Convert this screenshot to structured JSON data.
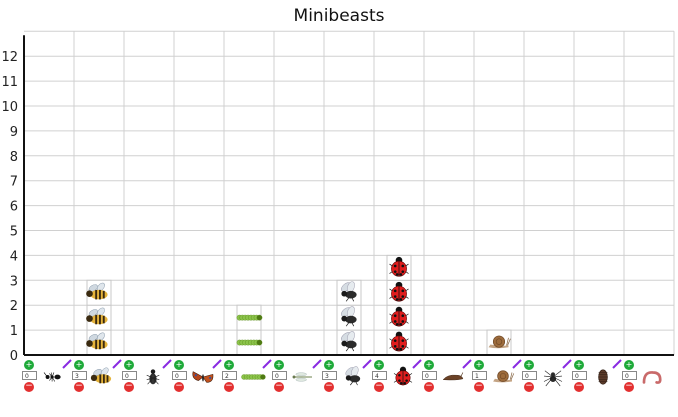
{
  "title": "Minibeasts",
  "chart_data": {
    "type": "bar",
    "title": "Minibeasts",
    "ylim": [
      0,
      13
    ],
    "yticks": [
      0,
      1,
      2,
      3,
      4,
      5,
      6,
      7,
      8,
      9,
      10,
      11,
      12
    ],
    "categories": [
      {
        "name": "ant",
        "icon": "ant-icon",
        "value": 0
      },
      {
        "name": "bee",
        "icon": "bee-icon",
        "value": 3
      },
      {
        "name": "beetle",
        "icon": "beetle-icon",
        "value": 0
      },
      {
        "name": "butterfly",
        "icon": "butterfly-icon",
        "value": 0
      },
      {
        "name": "caterpillar",
        "icon": "caterpillar-icon",
        "value": 2
      },
      {
        "name": "dragonfly",
        "icon": "dragonfly-icon",
        "value": 0
      },
      {
        "name": "fly",
        "icon": "fly-icon",
        "value": 3
      },
      {
        "name": "ladybird",
        "icon": "ladybird-icon",
        "value": 4
      },
      {
        "name": "slug",
        "icon": "slug-icon",
        "value": 0
      },
      {
        "name": "snail",
        "icon": "snail-icon",
        "value": 1
      },
      {
        "name": "spider",
        "icon": "spider-icon",
        "value": 0
      },
      {
        "name": "woodlouse",
        "icon": "woodlouse-icon",
        "value": 0
      },
      {
        "name": "worm",
        "icon": "worm-icon",
        "value": 0
      }
    ]
  },
  "controls": {
    "plus_label": "+",
    "minus_label": "−"
  },
  "colors": {
    "plus": "#1faa3a",
    "minus": "#e33030",
    "pen": "#8a2be2",
    "grid": "#d0d0d0",
    "axis": "#111111"
  }
}
